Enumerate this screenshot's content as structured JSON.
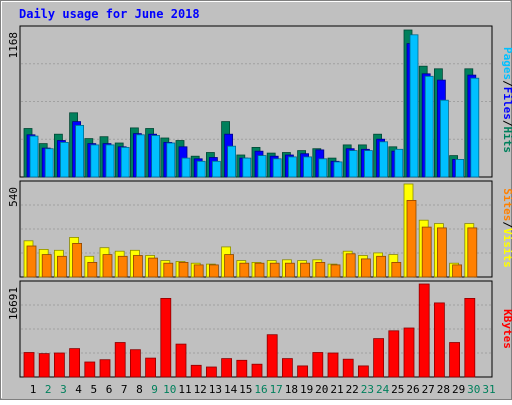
{
  "chart_data": [
    {
      "type": "bar",
      "title": "Daily usage for June 2018",
      "ytick_label": "1168",
      "ylim": [
        0,
        1168
      ],
      "categories": [
        "1",
        "2",
        "3",
        "4",
        "5",
        "6",
        "7",
        "8",
        "9",
        "10",
        "11",
        "12",
        "13",
        "14",
        "15",
        "16",
        "17",
        "18",
        "19",
        "20",
        "21",
        "22",
        "23",
        "24",
        "25",
        "26",
        "27",
        "28",
        "29",
        "30",
        "31"
      ],
      "weekend_days": [
        "2",
        "3",
        "9",
        "10",
        "16",
        "17",
        "23",
        "24",
        "30",
        "31"
      ],
      "side_label_parts": [
        "Pages",
        "Files",
        "Hits"
      ],
      "colors": {
        "Hits": "#00805c",
        "Files": "#0000ff",
        "Pages": "#00c0ff"
      },
      "series": [
        {
          "name": "Hits",
          "values": [
            385,
            265,
            340,
            510,
            305,
            320,
            270,
            390,
            385,
            310,
            290,
            165,
            195,
            440,
            175,
            235,
            190,
            195,
            210,
            225,
            150,
            255,
            255,
            340,
            240,
            1168,
            880,
            860,
            170,
            860,
            0
          ]
        },
        {
          "name": "Files",
          "values": [
            335,
            230,
            290,
            440,
            265,
            265,
            240,
            345,
            340,
            275,
            240,
            145,
            155,
            340,
            150,
            205,
            165,
            175,
            185,
            215,
            125,
            225,
            220,
            300,
            205,
            1060,
            820,
            770,
            140,
            810,
            0
          ]
        },
        {
          "name": "Pages",
          "values": [
            325,
            225,
            275,
            410,
            255,
            255,
            235,
            335,
            330,
            270,
            150,
            125,
            125,
            245,
            150,
            170,
            145,
            160,
            160,
            145,
            120,
            210,
            210,
            280,
            220,
            1130,
            800,
            610,
            140,
            785,
            0
          ]
        }
      ]
    },
    {
      "type": "bar",
      "ytick_label": "540",
      "ylim": [
        0,
        540
      ],
      "side_label_parts": [
        "Sites",
        "Visits"
      ],
      "colors": {
        "Visits": "#ffff00",
        "Sites": "#ff8000"
      },
      "series": [
        {
          "name": "Visits",
          "values": [
            210,
            160,
            155,
            230,
            120,
            170,
            150,
            155,
            125,
            95,
            90,
            80,
            75,
            175,
            95,
            85,
            95,
            100,
            95,
            100,
            75,
            150,
            125,
            140,
            130,
            540,
            330,
            310,
            80,
            310,
            0
          ]
        },
        {
          "name": "Sites",
          "values": [
            180,
            130,
            120,
            195,
            85,
            130,
            120,
            125,
            110,
            80,
            85,
            70,
            70,
            130,
            80,
            80,
            80,
            80,
            80,
            85,
            70,
            135,
            105,
            120,
            85,
            445,
            290,
            285,
            70,
            285,
            0
          ]
        }
      ]
    },
    {
      "type": "bar",
      "ytick_label": "16691",
      "ylim": [
        0,
        16691
      ],
      "side_label_parts": [
        "KBytes"
      ],
      "colors": {
        "KBytes": "#ff0000"
      },
      "series": [
        {
          "name": "KBytes",
          "values": [
            4400,
            4200,
            4300,
            5100,
            2700,
            3100,
            6200,
            4900,
            3400,
            14100,
            5900,
            2100,
            1800,
            3300,
            3000,
            2300,
            7600,
            3300,
            2000,
            4400,
            4300,
            3200,
            2000,
            6900,
            8300,
            8800,
            16691,
            13300,
            6200,
            14100,
            0
          ]
        }
      ]
    }
  ]
}
